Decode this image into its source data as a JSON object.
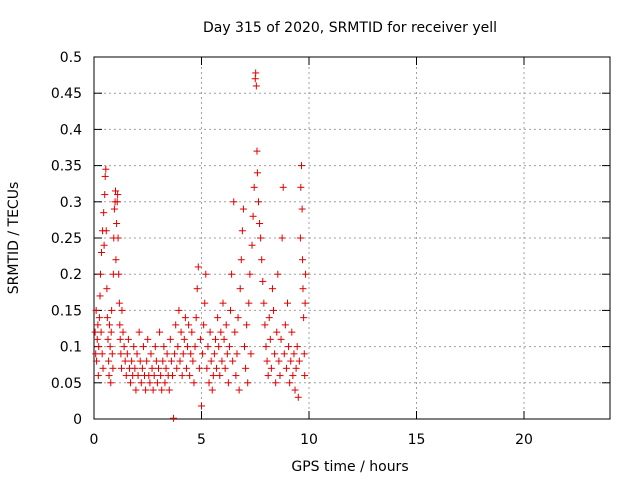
{
  "chart_data": {
    "type": "scatter",
    "title": "Day 315 of 2020, SRMTID for receiver yell",
    "xlabel": "GPS time / hours",
    "ylabel": "SRMTID / TECUs",
    "xlim": [
      0,
      24
    ],
    "ylim": [
      0,
      0.5
    ],
    "xticks": [
      0,
      5,
      10,
      15,
      20
    ],
    "xtick_labels": [
      "0",
      "5",
      "10",
      "15",
      "20"
    ],
    "yticks": [
      0,
      0.05,
      0.1,
      0.15,
      0.2,
      0.25,
      0.3,
      0.35,
      0.4,
      0.45,
      0.5
    ],
    "ytick_labels": [
      "0",
      "0.05",
      "0.1",
      "0.15",
      "0.2",
      "0.25",
      "0.3",
      "0.35",
      "0.4",
      "0.45",
      "0.5"
    ],
    "grid": true,
    "marker": "+",
    "marker_color": "#e00000",
    "series": [
      {
        "points": [
          [
            0.05,
            0.12
          ],
          [
            0.08,
            0.09
          ],
          [
            0.1,
            0.15
          ],
          [
            0.12,
            0.08
          ],
          [
            0.15,
            0.11
          ],
          [
            0.18,
            0.13
          ],
          [
            0.2,
            0.06
          ],
          [
            0.22,
            0.1
          ],
          [
            0.25,
            0.14
          ],
          [
            0.28,
            0.17
          ],
          [
            0.3,
            0.2
          ],
          [
            0.33,
            0.12
          ],
          [
            0.35,
            0.23
          ],
          [
            0.38,
            0.09
          ],
          [
            0.4,
            0.26
          ],
          [
            0.42,
            0.07
          ],
          [
            0.45,
            0.285
          ],
          [
            0.47,
            0.24
          ],
          [
            0.5,
            0.31
          ],
          [
            0.52,
            0.335
          ],
          [
            0.55,
            0.345
          ],
          [
            0.57,
            0.26
          ],
          [
            0.6,
            0.18
          ],
          [
            0.62,
            0.14
          ],
          [
            0.65,
            0.11
          ],
          [
            0.68,
            0.08
          ],
          [
            0.7,
            0.06
          ],
          [
            0.72,
            0.13
          ],
          [
            0.75,
            0.1
          ],
          [
            0.78,
            0.05
          ],
          [
            0.8,
            0.12
          ],
          [
            0.82,
            0.15
          ],
          [
            0.85,
            0.09
          ],
          [
            0.88,
            0.07
          ],
          [
            0.9,
            0.2
          ],
          [
            0.92,
            0.25
          ],
          [
            0.95,
            0.29
          ],
          [
            0.98,
            0.3
          ],
          [
            1.0,
            0.315
          ],
          [
            1.02,
            0.22
          ],
          [
            1.05,
            0.27
          ],
          [
            1.08,
            0.3
          ],
          [
            1.1,
            0.31
          ],
          [
            1.12,
            0.25
          ],
          [
            1.15,
            0.2
          ],
          [
            1.18,
            0.16
          ],
          [
            1.2,
            0.13
          ],
          [
            1.22,
            0.11
          ],
          [
            1.25,
            0.09
          ],
          [
            1.28,
            0.07
          ],
          [
            1.3,
            0.15
          ],
          [
            1.35,
            0.12
          ],
          [
            1.4,
            0.1
          ],
          [
            1.45,
            0.08
          ],
          [
            1.5,
            0.06
          ],
          [
            1.55,
            0.09
          ],
          [
            1.6,
            0.11
          ],
          [
            1.65,
            0.07
          ],
          [
            1.7,
            0.05
          ],
          [
            1.75,
            0.08
          ],
          [
            1.8,
            0.06
          ],
          [
            1.85,
            0.1
          ],
          [
            1.9,
            0.07
          ],
          [
            1.95,
            0.04
          ],
          [
            2.0,
            0.09
          ],
          [
            2.05,
            0.06
          ],
          [
            2.1,
            0.12
          ],
          [
            2.15,
            0.08
          ],
          [
            2.2,
            0.05
          ],
          [
            2.25,
            0.07
          ],
          [
            2.3,
            0.1
          ],
          [
            2.35,
            0.06
          ],
          [
            2.4,
            0.04
          ],
          [
            2.45,
            0.08
          ],
          [
            2.5,
            0.11
          ],
          [
            2.55,
            0.06
          ],
          [
            2.6,
            0.05
          ],
          [
            2.65,
            0.09
          ],
          [
            2.7,
            0.07
          ],
          [
            2.75,
            0.04
          ],
          [
            2.8,
            0.06
          ],
          [
            2.85,
            0.1
          ],
          [
            2.9,
            0.08
          ],
          [
            2.95,
            0.05
          ],
          [
            3.0,
            0.07
          ],
          [
            3.05,
            0.12
          ],
          [
            3.1,
            0.06
          ],
          [
            3.15,
            0.04
          ],
          [
            3.2,
            0.08
          ],
          [
            3.25,
            0.1
          ],
          [
            3.3,
            0.05
          ],
          [
            3.35,
            0.07
          ],
          [
            3.4,
            0.09
          ],
          [
            3.45,
            0.06
          ],
          [
            3.5,
            0.04
          ],
          [
            3.55,
            0.11
          ],
          [
            3.6,
            0.08
          ],
          [
            3.65,
            0.06
          ],
          [
            3.7,
            0.001
          ],
          [
            3.75,
            0.09
          ],
          [
            3.8,
            0.13
          ],
          [
            3.85,
            0.07
          ],
          [
            3.9,
            0.1
          ],
          [
            3.95,
            0.15
          ],
          [
            4.0,
            0.08
          ],
          [
            4.05,
            0.12
          ],
          [
            4.1,
            0.06
          ],
          [
            4.15,
            0.09
          ],
          [
            4.2,
            0.11
          ],
          [
            4.25,
            0.14
          ],
          [
            4.3,
            0.07
          ],
          [
            4.35,
            0.1
          ],
          [
            4.4,
            0.13
          ],
          [
            4.45,
            0.06
          ],
          [
            4.5,
            0.09
          ],
          [
            4.55,
            0.12
          ],
          [
            4.6,
            0.08
          ],
          [
            4.65,
            0.05
          ],
          [
            4.7,
            0.1
          ],
          [
            4.75,
            0.14
          ],
          [
            4.8,
            0.18
          ],
          [
            4.85,
            0.21
          ],
          [
            4.9,
            0.07
          ],
          [
            4.95,
            0.11
          ],
          [
            5.0,
            0.018
          ],
          [
            5.05,
            0.09
          ],
          [
            5.1,
            0.13
          ],
          [
            5.15,
            0.16
          ],
          [
            5.2,
            0.2
          ],
          [
            5.25,
            0.07
          ],
          [
            5.3,
            0.1
          ],
          [
            5.35,
            0.05
          ],
          [
            5.4,
            0.12
          ],
          [
            5.45,
            0.08
          ],
          [
            5.5,
            0.04
          ],
          [
            5.55,
            0.06
          ],
          [
            5.6,
            0.09
          ],
          [
            5.65,
            0.11
          ],
          [
            5.7,
            0.07
          ],
          [
            5.75,
            0.14
          ],
          [
            5.8,
            0.1
          ],
          [
            5.85,
            0.06
          ],
          [
            5.9,
            0.12
          ],
          [
            5.95,
            0.08
          ],
          [
            6.0,
            0.16
          ],
          [
            6.05,
            0.11
          ],
          [
            6.1,
            0.07
          ],
          [
            6.15,
            0.13
          ],
          [
            6.2,
            0.09
          ],
          [
            6.25,
            0.05
          ],
          [
            6.3,
            0.1
          ],
          [
            6.35,
            0.15
          ],
          [
            6.4,
            0.2
          ],
          [
            6.45,
            0.08
          ],
          [
            6.5,
            0.3
          ],
          [
            6.55,
            0.12
          ],
          [
            6.6,
            0.06
          ],
          [
            6.65,
            0.09
          ],
          [
            6.7,
            0.14
          ],
          [
            6.75,
            0.04
          ],
          [
            6.8,
            0.18
          ],
          [
            6.85,
            0.22
          ],
          [
            6.9,
            0.26
          ],
          [
            6.95,
            0.29
          ],
          [
            7.0,
            0.1
          ],
          [
            7.05,
            0.07
          ],
          [
            7.1,
            0.13
          ],
          [
            7.15,
            0.05
          ],
          [
            7.2,
            0.16
          ],
          [
            7.25,
            0.2
          ],
          [
            7.3,
            0.09
          ],
          [
            7.35,
            0.24
          ],
          [
            7.4,
            0.28
          ],
          [
            7.45,
            0.32
          ],
          [
            7.5,
            0.47
          ],
          [
            7.52,
            0.478
          ],
          [
            7.55,
            0.46
          ],
          [
            7.58,
            0.37
          ],
          [
            7.6,
            0.34
          ],
          [
            7.65,
            0.3
          ],
          [
            7.7,
            0.27
          ],
          [
            7.75,
            0.25
          ],
          [
            7.8,
            0.22
          ],
          [
            7.85,
            0.19
          ],
          [
            7.9,
            0.16
          ],
          [
            7.95,
            0.13
          ],
          [
            8.0,
            0.1
          ],
          [
            8.05,
            0.08
          ],
          [
            8.1,
            0.06
          ],
          [
            8.15,
            0.14
          ],
          [
            8.2,
            0.11
          ],
          [
            8.25,
            0.07
          ],
          [
            8.3,
            0.18
          ],
          [
            8.35,
            0.15
          ],
          [
            8.4,
            0.09
          ],
          [
            8.45,
            0.05
          ],
          [
            8.5,
            0.12
          ],
          [
            8.55,
            0.2
          ],
          [
            8.6,
            0.08
          ],
          [
            8.65,
            0.06
          ],
          [
            8.7,
            0.11
          ],
          [
            8.75,
            0.25
          ],
          [
            8.8,
            0.32
          ],
          [
            8.85,
            0.09
          ],
          [
            8.9,
            0.13
          ],
          [
            8.95,
            0.07
          ],
          [
            9.0,
            0.16
          ],
          [
            9.05,
            0.1
          ],
          [
            9.1,
            0.05
          ],
          [
            9.15,
            0.08
          ],
          [
            9.2,
            0.12
          ],
          [
            9.25,
            0.06
          ],
          [
            9.3,
            0.09
          ],
          [
            9.35,
            0.04
          ],
          [
            9.4,
            0.07
          ],
          [
            9.45,
            0.1
          ],
          [
            9.5,
            0.03
          ],
          [
            9.55,
            0.08
          ],
          [
            9.6,
            0.25
          ],
          [
            9.62,
            0.32
          ],
          [
            9.65,
            0.35
          ],
          [
            9.68,
            0.29
          ],
          [
            9.7,
            0.22
          ],
          [
            9.72,
            0.18
          ],
          [
            9.75,
            0.14
          ],
          [
            9.78,
            0.09
          ],
          [
            9.8,
            0.06
          ],
          [
            9.82,
            0.16
          ],
          [
            9.84,
            0.2
          ]
        ]
      }
    ]
  }
}
